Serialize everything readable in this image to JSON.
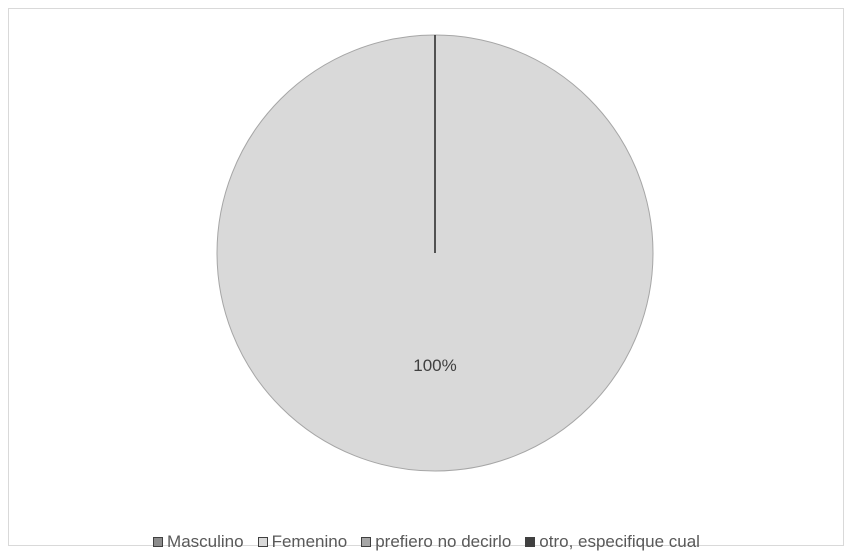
{
  "chart_data": {
    "type": "pie",
    "categories": [
      "Masculino",
      "Femenino",
      "prefiero no decirlo",
      "otro, especifique cual"
    ],
    "values": [
      0,
      100,
      0,
      0
    ],
    "data_labels": [
      "",
      "100%",
      "",
      ""
    ],
    "colors": [
      "#8c8c8c",
      "#d9d9d9",
      "#a6a6a6",
      "#404040"
    ],
    "legend_position": "bottom",
    "title": ""
  }
}
